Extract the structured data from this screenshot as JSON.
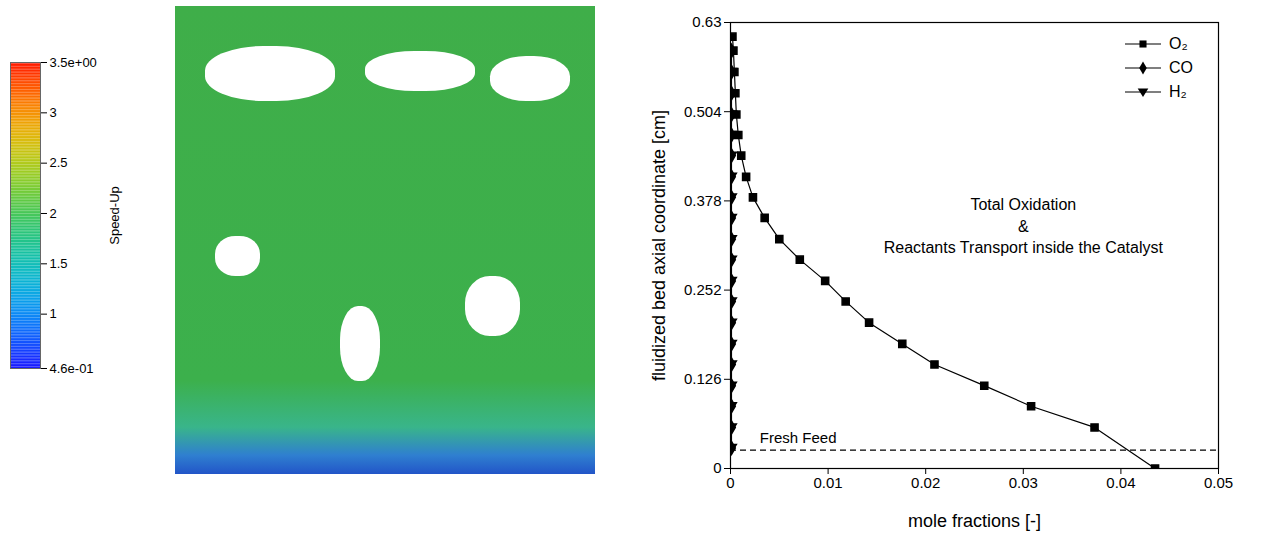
{
  "chart_data": {
    "type": "line",
    "x_label": "mole fractions [-]",
    "y_label": "fluidized bed axial coordinate [cm]",
    "xlim": [
      0,
      0.05
    ],
    "xticks": [
      0,
      0.01,
      0.02,
      0.03,
      0.04,
      0.05
    ],
    "ylim": [
      0,
      0.63
    ],
    "yticks": [
      0,
      0.126,
      0.252,
      0.378,
      0.504,
      0.63
    ],
    "legend": "top-right",
    "series": [
      {
        "name": "O₂",
        "color": "#000000",
        "marker": "square",
        "line_style": "solid",
        "x": [
          0.0435,
          0.0373,
          0.0308,
          0.026,
          0.0209,
          0.0176,
          0.0142,
          0.0118,
          0.0097,
          0.0071,
          0.005,
          0.0035,
          0.0023,
          0.0016,
          0.0011,
          0.0008,
          0.0006,
          0.0005,
          0.0004,
          0.0003,
          0.0002
        ],
        "y": [
          0,
          0.058,
          0.088,
          0.117,
          0.147,
          0.176,
          0.206,
          0.236,
          0.265,
          0.295,
          0.324,
          0.354,
          0.383,
          0.412,
          0.442,
          0.471,
          0.5,
          0.53,
          0.56,
          0.59,
          0.61
        ]
      },
      {
        "name": "CO",
        "color": "#000000",
        "marker": "diamond",
        "line_style": "solid",
        "x": [
          0.0001,
          0.0001,
          0.0001,
          0.0001,
          0.0001,
          0.0001,
          0.0001,
          0.0001,
          0.0001,
          0.0001,
          0.0001,
          0.0001,
          0.0001,
          0.0001,
          0.0001,
          0.0001,
          0.0001,
          0.0001,
          0.0001,
          0.0001
        ],
        "y": [
          0.029,
          0.058,
          0.088,
          0.117,
          0.147,
          0.176,
          0.206,
          0.236,
          0.265,
          0.295,
          0.324,
          0.354,
          0.383,
          0.412,
          0.442,
          0.471,
          0.5,
          0.53,
          0.56,
          0.59
        ]
      },
      {
        "name": "H₂",
        "color": "#000000",
        "marker": "triangle-down",
        "line_style": "solid",
        "x": [
          5e-05,
          5e-05,
          5e-05,
          5e-05,
          5e-05,
          5e-05,
          5e-05,
          5e-05,
          5e-05,
          5e-05,
          5e-05,
          5e-05,
          5e-05,
          5e-05,
          5e-05,
          5e-05,
          5e-05,
          5e-05,
          5e-05,
          5e-05
        ],
        "y": [
          0.029,
          0.058,
          0.088,
          0.117,
          0.147,
          0.176,
          0.206,
          0.236,
          0.265,
          0.295,
          0.324,
          0.354,
          0.383,
          0.412,
          0.442,
          0.471,
          0.5,
          0.53,
          0.56,
          0.59
        ]
      }
    ],
    "reference_lines": [
      {
        "y": 0.026,
        "label": "Fresh Feed",
        "line_style": "dashed"
      }
    ],
    "annotations": [
      "Total Oxidation",
      "&",
      "Reactants Transport inside the Catalyst"
    ]
  },
  "particle_image": {
    "colorbar_label": "Speed-Up",
    "colorbar_range": [
      0.46,
      3.5
    ],
    "colorbar_ticks": [
      {
        "value": 3.5,
        "label": "3.5e+00"
      },
      3,
      2.5,
      2,
      1.5,
      1,
      {
        "value": 0.46,
        "label": "4.6e-01"
      }
    ]
  }
}
